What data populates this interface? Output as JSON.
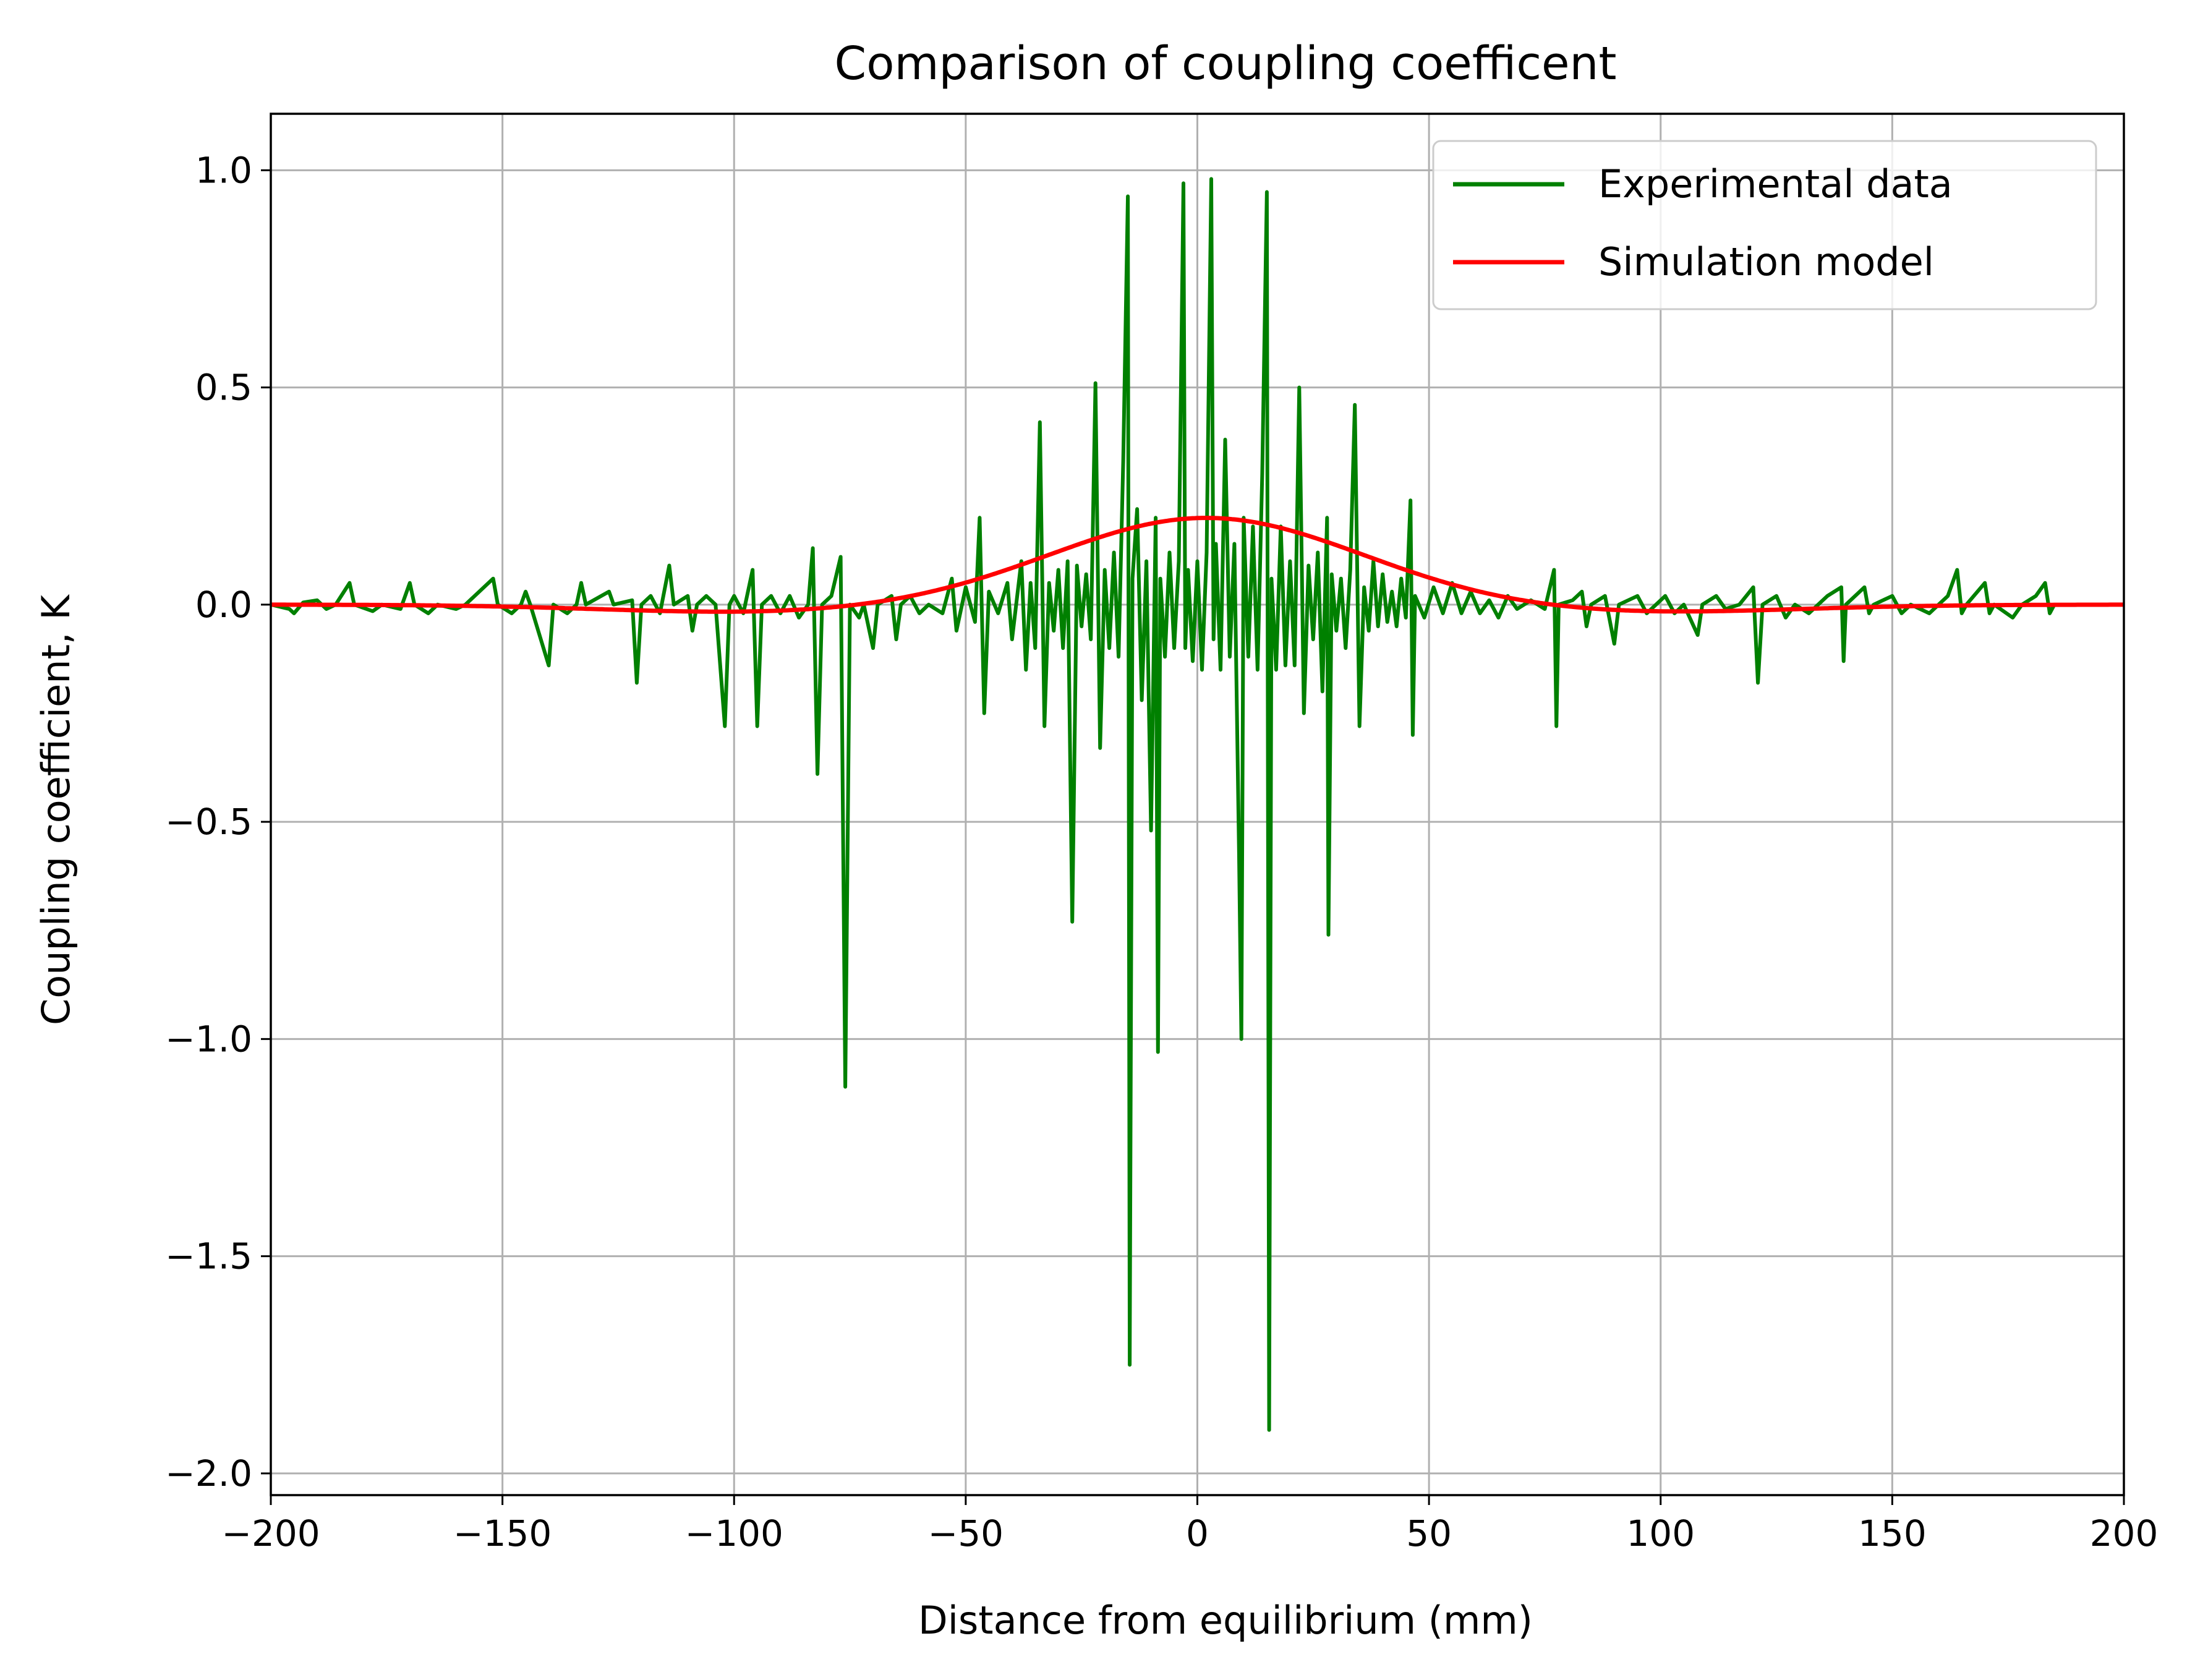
{
  "chart_data": {
    "type": "line",
    "title": "Comparison of coupling coefficent",
    "xlabel": "Distance from equilibrium (mm)",
    "ylabel": "Coupling coefficient, K",
    "xlim": [
      -200,
      200
    ],
    "ylim": [
      -2.05,
      1.13
    ],
    "xticks": [
      -200,
      -150,
      -100,
      -50,
      0,
      50,
      100,
      150,
      200
    ],
    "xtick_labels": [
      "−200",
      "−150",
      "−100",
      "−50",
      "0",
      "50",
      "100",
      "150",
      "200"
    ],
    "yticks": [
      1.0,
      0.5,
      0.0,
      -0.5,
      -1.0,
      -1.5,
      -2.0
    ],
    "ytick_labels": [
      "1.0",
      "0.5",
      "0.0",
      "−0.5",
      "−1.0",
      "−1.5",
      "−2.0"
    ],
    "grid": true,
    "legend_position": "top-right",
    "series": [
      {
        "name": "Experimental data",
        "color": "#008000",
        "points": [
          [
            -200,
            0.0
          ],
          [
            -196,
            -0.01
          ],
          [
            -195,
            -0.02
          ],
          [
            -193,
            0.005
          ],
          [
            -190,
            0.01
          ],
          [
            -188,
            -0.01
          ],
          [
            -186,
            0.0
          ],
          [
            -183,
            0.05
          ],
          [
            -182,
            0.0
          ],
          [
            -178,
            -0.015
          ],
          [
            -176,
            0.0
          ],
          [
            -172,
            -0.01
          ],
          [
            -170,
            0.05
          ],
          [
            -169,
            0.0
          ],
          [
            -166,
            -0.02
          ],
          [
            -164,
            0.0
          ],
          [
            -160,
            -0.01
          ],
          [
            -158,
            0.0
          ],
          [
            -152,
            0.06
          ],
          [
            -151,
            0.0
          ],
          [
            -148,
            -0.02
          ],
          [
            -146,
            0.0
          ],
          [
            -145,
            0.03
          ],
          [
            -144,
            0.0
          ],
          [
            -140,
            -0.14
          ],
          [
            -139,
            0.0
          ],
          [
            -136,
            -0.02
          ],
          [
            -134,
            0.0
          ],
          [
            -133,
            0.05
          ],
          [
            -132,
            0.0
          ],
          [
            -127,
            0.03
          ],
          [
            -126,
            0.0
          ],
          [
            -122,
            0.01
          ],
          [
            -121,
            -0.18
          ],
          [
            -120,
            0.0
          ],
          [
            -118,
            0.02
          ],
          [
            -116,
            -0.02
          ],
          [
            -114,
            0.09
          ],
          [
            -113,
            0.0
          ],
          [
            -110,
            0.02
          ],
          [
            -109,
            -0.06
          ],
          [
            -108,
            0.0
          ],
          [
            -106,
            0.02
          ],
          [
            -104,
            0.0
          ],
          [
            -102,
            -0.28
          ],
          [
            -101,
            0.0
          ],
          [
            -100,
            0.02
          ],
          [
            -98,
            -0.02
          ],
          [
            -96,
            0.08
          ],
          [
            -95,
            -0.28
          ],
          [
            -94,
            0.0
          ],
          [
            -92,
            0.02
          ],
          [
            -90,
            -0.02
          ],
          [
            -88,
            0.02
          ],
          [
            -86,
            -0.03
          ],
          [
            -84,
            0.0
          ],
          [
            -83,
            0.13
          ],
          [
            -82,
            -0.39
          ],
          [
            -81,
            0.0
          ],
          [
            -79,
            0.02
          ],
          [
            -77,
            0.11
          ],
          [
            -76,
            -1.11
          ],
          [
            -75,
            0.0
          ],
          [
            -73,
            -0.03
          ],
          [
            -72,
            0.0
          ],
          [
            -70,
            -0.1
          ],
          [
            -69,
            0.0
          ],
          [
            -66,
            0.02
          ],
          [
            -65,
            -0.08
          ],
          [
            -64,
            0.0
          ],
          [
            -62,
            0.02
          ],
          [
            -60,
            -0.02
          ],
          [
            -58,
            0.0
          ],
          [
            -55,
            -0.02
          ],
          [
            -53,
            0.06
          ],
          [
            -52,
            -0.06
          ],
          [
            -50,
            0.04
          ],
          [
            -48,
            -0.04
          ],
          [
            -47,
            0.2
          ],
          [
            -46,
            -0.25
          ],
          [
            -45,
            0.03
          ],
          [
            -43,
            -0.02
          ],
          [
            -41,
            0.05
          ],
          [
            -40,
            -0.08
          ],
          [
            -38,
            0.1
          ],
          [
            -37,
            -0.15
          ],
          [
            -36,
            0.05
          ],
          [
            -35,
            -0.1
          ],
          [
            -34,
            0.42
          ],
          [
            -33,
            -0.28
          ],
          [
            -32,
            0.05
          ],
          [
            -31,
            -0.06
          ],
          [
            -30,
            0.08
          ],
          [
            -29,
            -0.1
          ],
          [
            -28,
            0.1
          ],
          [
            -27,
            -0.73
          ],
          [
            -26,
            0.09
          ],
          [
            -25,
            -0.05
          ],
          [
            -24,
            0.07
          ],
          [
            -23,
            -0.08
          ],
          [
            -22,
            0.51
          ],
          [
            -21,
            -0.33
          ],
          [
            -20,
            0.08
          ],
          [
            -19,
            -0.1
          ],
          [
            -18,
            0.12
          ],
          [
            -17,
            -0.12
          ],
          [
            -16,
            0.33
          ],
          [
            -15,
            0.94
          ],
          [
            -14.6,
            -1.75
          ],
          [
            -14,
            0.06
          ],
          [
            -13,
            0.22
          ],
          [
            -12,
            -0.22
          ],
          [
            -11,
            0.1
          ],
          [
            -10,
            -0.52
          ],
          [
            -9,
            0.2
          ],
          [
            -8.5,
            -1.03
          ],
          [
            -8,
            0.06
          ],
          [
            -7,
            -0.12
          ],
          [
            -6,
            0.12
          ],
          [
            -5,
            -0.1
          ],
          [
            -4,
            0.1
          ],
          [
            -3,
            0.97
          ],
          [
            -2.6,
            -0.1
          ],
          [
            -2,
            0.08
          ],
          [
            -1,
            -0.13
          ],
          [
            0,
            0.1
          ],
          [
            1,
            -0.15
          ],
          [
            2,
            0.12
          ],
          [
            3,
            0.98
          ],
          [
            3.5,
            -0.08
          ],
          [
            4,
            0.14
          ],
          [
            5,
            -0.15
          ],
          [
            6,
            0.38
          ],
          [
            7,
            -0.12
          ],
          [
            8,
            0.14
          ],
          [
            9,
            -0.57
          ],
          [
            9.5,
            -1.0
          ],
          [
            10,
            0.2
          ],
          [
            11,
            -0.12
          ],
          [
            12,
            0.18
          ],
          [
            13,
            -0.15
          ],
          [
            14,
            0.3
          ],
          [
            15,
            0.95
          ],
          [
            15.5,
            -1.9
          ],
          [
            16,
            0.06
          ],
          [
            17,
            -0.15
          ],
          [
            18,
            0.18
          ],
          [
            19,
            -0.14
          ],
          [
            20,
            0.1
          ],
          [
            21,
            -0.14
          ],
          [
            22,
            0.5
          ],
          [
            23,
            -0.25
          ],
          [
            24,
            0.09
          ],
          [
            25,
            -0.08
          ],
          [
            26,
            0.12
          ],
          [
            27,
            -0.2
          ],
          [
            28,
            0.2
          ],
          [
            28.3,
            -0.76
          ],
          [
            29,
            0.07
          ],
          [
            30,
            -0.06
          ],
          [
            31,
            0.06
          ],
          [
            32,
            -0.1
          ],
          [
            33,
            0.08
          ],
          [
            34,
            0.46
          ],
          [
            35,
            -0.28
          ],
          [
            36,
            0.04
          ],
          [
            37,
            -0.06
          ],
          [
            38,
            0.1
          ],
          [
            39,
            -0.05
          ],
          [
            40,
            0.07
          ],
          [
            41,
            -0.04
          ],
          [
            42,
            0.03
          ],
          [
            43,
            -0.05
          ],
          [
            44,
            0.06
          ],
          [
            45,
            -0.03
          ],
          [
            46,
            0.24
          ],
          [
            46.5,
            -0.3
          ],
          [
            47,
            0.02
          ],
          [
            49,
            -0.03
          ],
          [
            51,
            0.04
          ],
          [
            53,
            -0.02
          ],
          [
            55,
            0.05
          ],
          [
            57,
            -0.02
          ],
          [
            59,
            0.03
          ],
          [
            61,
            -0.02
          ],
          [
            63,
            0.01
          ],
          [
            65,
            -0.03
          ],
          [
            67,
            0.02
          ],
          [
            69,
            -0.01
          ],
          [
            72,
            0.01
          ],
          [
            75,
            -0.01
          ],
          [
            77,
            0.08
          ],
          [
            77.5,
            -0.28
          ],
          [
            78,
            0.0
          ],
          [
            81,
            0.01
          ],
          [
            83,
            0.03
          ],
          [
            84,
            -0.05
          ],
          [
            85,
            0.0
          ],
          [
            88,
            0.02
          ],
          [
            90,
            -0.09
          ],
          [
            91,
            0.0
          ],
          [
            95,
            0.02
          ],
          [
            97,
            -0.02
          ],
          [
            99,
            0.0
          ],
          [
            101,
            0.02
          ],
          [
            103,
            -0.02
          ],
          [
            105,
            0.0
          ],
          [
            108,
            -0.07
          ],
          [
            109,
            0.0
          ],
          [
            112,
            0.02
          ],
          [
            114,
            -0.01
          ],
          [
            117,
            0.0
          ],
          [
            120,
            0.04
          ],
          [
            121,
            -0.18
          ],
          [
            122,
            0.0
          ],
          [
            125,
            0.02
          ],
          [
            127,
            -0.03
          ],
          [
            129,
            0.0
          ],
          [
            132,
            -0.02
          ],
          [
            134,
            0.0
          ],
          [
            136,
            0.02
          ],
          [
            139,
            0.04
          ],
          [
            139.5,
            -0.13
          ],
          [
            140,
            0.0
          ],
          [
            144,
            0.04
          ],
          [
            145,
            -0.02
          ],
          [
            146,
            0.0
          ],
          [
            150,
            0.02
          ],
          [
            152,
            -0.02
          ],
          [
            154,
            0.0
          ],
          [
            158,
            -0.02
          ],
          [
            160,
            0.0
          ],
          [
            162,
            0.02
          ],
          [
            164,
            0.08
          ],
          [
            165,
            -0.02
          ],
          [
            166,
            0.0
          ],
          [
            170,
            0.05
          ],
          [
            171,
            -0.02
          ],
          [
            172,
            0.0
          ],
          [
            176,
            -0.03
          ],
          [
            178,
            0.0
          ],
          [
            181,
            0.02
          ],
          [
            183,
            0.05
          ],
          [
            184,
            -0.02
          ],
          [
            185,
            0.0
          ]
        ]
      },
      {
        "name": "Simulation model",
        "color": "#ff0000",
        "model": {
          "gaussian": {
            "amplitude": 0.2,
            "center": 2,
            "sigma": 33
          },
          "negative_lobe": {
            "amplitude": -0.018,
            "abs_center": 95,
            "sigma": 33
          }
        }
      }
    ]
  }
}
